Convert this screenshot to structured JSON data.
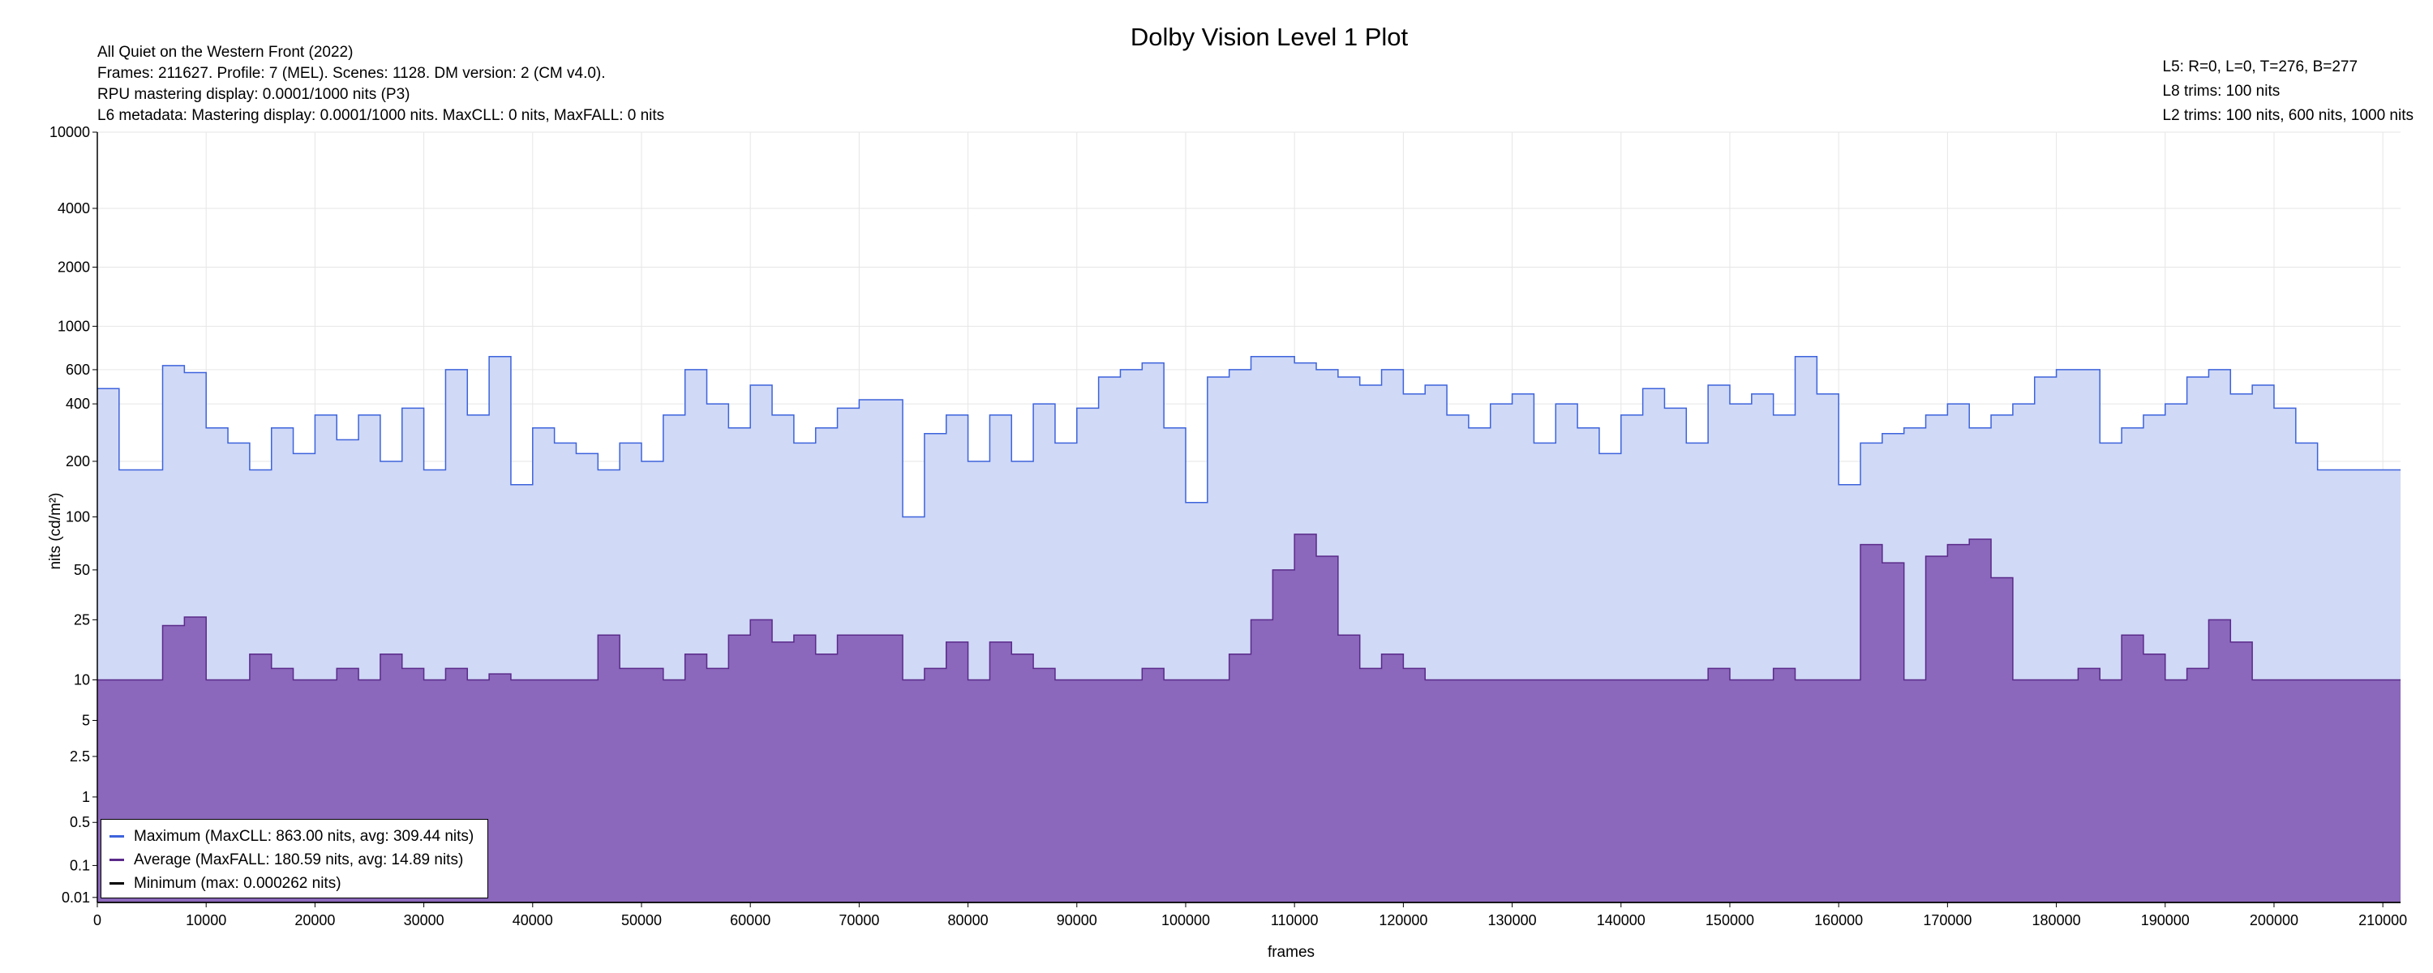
{
  "header": {
    "title": "Dolby Vision Level 1 Plot",
    "info_left": [
      "All Quiet on the Western Front (2022)",
      "Frames: 211627. Profile: 7 (MEL). Scenes: 1128. DM version: 2 (CM v4.0).",
      "RPU mastering display: 0.0001/1000 nits  (P3)",
      "L6 metadata: Mastering display: 0.0001/1000 nits. MaxCLL: 0 nits, MaxFALL: 0 nits"
    ],
    "info_right": [
      "L5: R=0, L=0, T=276, B=277",
      "L8 trims: 100 nits",
      "L2 trims: 100 nits, 600 nits, 1000 nits"
    ]
  },
  "chart_data": {
    "type": "area",
    "title": "Dolby Vision Level 1 Plot",
    "xlabel": "frames",
    "ylabel": "nits (cd/m²)",
    "xlim": [
      0,
      211627
    ],
    "x_ticks": [
      "0",
      "10000",
      "20000",
      "30000",
      "40000",
      "50000",
      "60000",
      "70000",
      "80000",
      "90000",
      "100000",
      "110000",
      "120000",
      "130000",
      "140000",
      "150000",
      "160000",
      "170000",
      "180000",
      "190000",
      "200000",
      "210000"
    ],
    "y_scale": "pq",
    "y_ticks": [
      "0.01",
      "0.1",
      "0.5",
      "1",
      "2.5",
      "5",
      "10",
      "25",
      "50",
      "100",
      "200",
      "400",
      "600",
      "1000",
      "2000",
      "4000",
      "10000"
    ],
    "ylim": [
      0.005,
      10000
    ],
    "grid": true,
    "legend_position": "bottom-left",
    "x": [
      0,
      2000,
      4000,
      6000,
      8000,
      10000,
      12000,
      14000,
      16000,
      18000,
      20000,
      22000,
      24000,
      26000,
      28000,
      30000,
      32000,
      34000,
      36000,
      38000,
      40000,
      42000,
      44000,
      46000,
      48000,
      50000,
      52000,
      54000,
      56000,
      58000,
      60000,
      62000,
      64000,
      66000,
      68000,
      70000,
      72000,
      74000,
      76000,
      78000,
      80000,
      82000,
      84000,
      86000,
      88000,
      90000,
      92000,
      94000,
      96000,
      98000,
      100000,
      102000,
      104000,
      106000,
      108000,
      110000,
      112000,
      114000,
      116000,
      118000,
      120000,
      122000,
      124000,
      126000,
      128000,
      130000,
      132000,
      134000,
      136000,
      138000,
      140000,
      142000,
      144000,
      146000,
      148000,
      150000,
      152000,
      154000,
      156000,
      158000,
      160000,
      162000,
      164000,
      166000,
      168000,
      170000,
      172000,
      174000,
      176000,
      178000,
      180000,
      182000,
      184000,
      186000,
      188000,
      190000,
      192000,
      194000,
      196000,
      198000,
      200000,
      202000,
      204000,
      206000,
      208000,
      210000,
      211627
    ],
    "series": [
      {
        "name": "Maximum (MaxCLL: 863.00 nits, avg: 309.44 nits)",
        "color": "#3d63dc",
        "fill": "#d0d9f6",
        "values": [
          480,
          180,
          180,
          630,
          580,
          300,
          250,
          180,
          300,
          220,
          350,
          260,
          350,
          200,
          380,
          180,
          600,
          350,
          700,
          150,
          300,
          250,
          220,
          180,
          250,
          200,
          350,
          600,
          400,
          300,
          500,
          350,
          250,
          300,
          380,
          420,
          420,
          100,
          280,
          350,
          200,
          350,
          200,
          400,
          250,
          380,
          550,
          600,
          650,
          300,
          120,
          550,
          600,
          700,
          700,
          650,
          600,
          550,
          500,
          600,
          450,
          500,
          350,
          300,
          400,
          450,
          250,
          400,
          300,
          220,
          350,
          480,
          380,
          250,
          500,
          400,
          450,
          350,
          700,
          450,
          150,
          250,
          280,
          300,
          350,
          400,
          300,
          350,
          400,
          550,
          600,
          600,
          250,
          300,
          350,
          400,
          550,
          600,
          450,
          500,
          380,
          250,
          180,
          180,
          180,
          180,
          180
        ]
      },
      {
        "name": "Average (MaxFALL: 180.59 nits, avg: 14.89 nits)",
        "color": "#5a2a8a",
        "fill": "#8b68bb",
        "values": [
          10,
          10,
          10,
          23,
          26,
          10,
          10,
          15,
          12,
          10,
          10,
          12,
          10,
          15,
          12,
          10,
          12,
          10,
          11,
          10,
          10,
          10,
          10,
          20,
          12,
          12,
          10,
          15,
          12,
          20,
          25,
          18,
          20,
          15,
          20,
          20,
          20,
          10,
          12,
          18,
          10,
          18,
          15,
          12,
          10,
          10,
          10,
          10,
          12,
          10,
          10,
          10,
          15,
          25,
          50,
          80,
          60,
          20,
          12,
          15,
          12,
          10,
          10,
          10,
          10,
          10,
          10,
          10,
          10,
          10,
          10,
          10,
          10,
          10,
          12,
          10,
          10,
          12,
          10,
          10,
          10,
          70,
          55,
          10,
          60,
          70,
          75,
          45,
          10,
          10,
          10,
          12,
          10,
          20,
          15,
          10,
          12,
          25,
          18,
          10,
          10,
          10,
          10,
          10,
          10,
          10,
          10
        ]
      },
      {
        "name": "Minimum (max: 0.000262 nits)",
        "color": "#000000",
        "fill": "none",
        "values": [
          0.005,
          0.005,
          0.005,
          0.005,
          0.005,
          0.005,
          0.005,
          0.005,
          0.005,
          0.005,
          0.005,
          0.005,
          0.005,
          0.005,
          0.005,
          0.005,
          0.005,
          0.005,
          0.005,
          0.005,
          0.005,
          0.005,
          0.005,
          0.005,
          0.005,
          0.005,
          0.005,
          0.005,
          0.005,
          0.005,
          0.005,
          0.005,
          0.005,
          0.005,
          0.005,
          0.005,
          0.005,
          0.005,
          0.005,
          0.005,
          0.005,
          0.005,
          0.005,
          0.005,
          0.005,
          0.005,
          0.005,
          0.005,
          0.005,
          0.005,
          0.005,
          0.005,
          0.005,
          0.005,
          0.005,
          0.005,
          0.005,
          0.005,
          0.005,
          0.005,
          0.005,
          0.005,
          0.005,
          0.005,
          0.005,
          0.005,
          0.005,
          0.005,
          0.005,
          0.005,
          0.005,
          0.005,
          0.005,
          0.005,
          0.005,
          0.005,
          0.005,
          0.005,
          0.005,
          0.005,
          0.005,
          0.005,
          0.005,
          0.005,
          0.005,
          0.005,
          0.005,
          0.005,
          0.005,
          0.005,
          0.005,
          0.005,
          0.005,
          0.005,
          0.005,
          0.005,
          0.005,
          0.005,
          0.005,
          0.005,
          0.005,
          0.005,
          0.005,
          0.005,
          0.005,
          0.005,
          0.005
        ]
      }
    ]
  }
}
